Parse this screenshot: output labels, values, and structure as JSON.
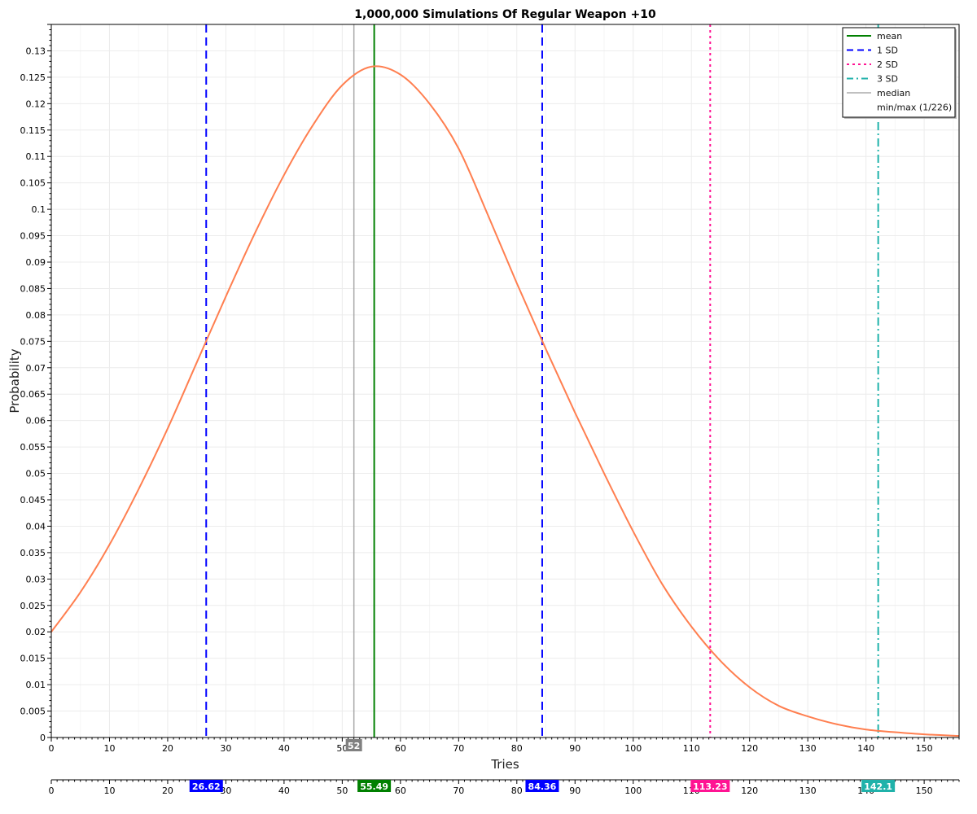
{
  "chart_data": {
    "type": "line",
    "title": "1,000,000 Simulations Of Regular Weapon +10",
    "xlabel": "Tries",
    "ylabel": "Probability",
    "xlim": [
      0,
      156
    ],
    "ylim": [
      0,
      0.135
    ],
    "x_ticks": [
      0,
      10,
      20,
      30,
      40,
      50,
      60,
      70,
      80,
      90,
      100,
      110,
      120,
      130,
      140,
      150
    ],
    "y_ticks": [
      0,
      0.005,
      0.01,
      0.015,
      0.02,
      0.025,
      0.03,
      0.035,
      0.04,
      0.045,
      0.05,
      0.055,
      0.06,
      0.065,
      0.07,
      0.075,
      0.08,
      0.085,
      0.09,
      0.095,
      0.1,
      0.105,
      0.11,
      0.115,
      0.12,
      0.125,
      0.13
    ],
    "grid": true,
    "series": [
      {
        "color": "#ff7f50",
        "x": [
          0,
          5,
          10,
          15,
          20,
          25,
          30,
          35,
          40,
          45,
          50,
          55,
          60,
          65,
          70,
          75,
          80,
          85,
          90,
          95,
          100,
          105,
          110,
          115,
          120,
          125,
          130,
          135,
          140,
          145,
          150,
          156
        ],
        "y": [
          0.02,
          0.0275,
          0.0365,
          0.047,
          0.0585,
          0.071,
          0.0835,
          0.0955,
          0.1065,
          0.116,
          0.1235,
          0.127,
          0.1255,
          0.12,
          0.1115,
          0.099,
          0.086,
          0.0735,
          0.0615,
          0.05,
          0.039,
          0.029,
          0.021,
          0.0145,
          0.0095,
          0.006,
          0.004,
          0.0025,
          0.0015,
          0.001,
          0.0006,
          0.0003
        ]
      }
    ],
    "vlines": [
      {
        "key": "mean",
        "x": 55.49,
        "color": "#008000",
        "dash": "",
        "width": 2,
        "badge": "55.49",
        "badge_color": "#008000"
      },
      {
        "key": "sd1-low",
        "x": 26.62,
        "color": "#0000ff",
        "dash": "10,6",
        "width": 2,
        "badge": "26.62",
        "badge_color": "#0000ff"
      },
      {
        "key": "sd1-high",
        "x": 84.36,
        "color": "#0000ff",
        "dash": "10,6",
        "width": 2,
        "badge": "84.36",
        "badge_color": "#0000ff"
      },
      {
        "key": "sd2",
        "x": 113.23,
        "color": "#ff1493",
        "dash": "3,4",
        "width": 2,
        "badge": "113.23",
        "badge_color": "#ff1493"
      },
      {
        "key": "sd3",
        "x": 142.1,
        "color": "#20b2aa",
        "dash": "10,4,2,4",
        "width": 2,
        "badge": "142.1",
        "badge_color": "#20b2aa"
      },
      {
        "key": "median",
        "x": 52,
        "color": "#a9a9a9",
        "dash": "",
        "width": 1.5,
        "badge": "52",
        "badge_color": "#808080"
      }
    ],
    "legend": {
      "position": "top-right",
      "items": [
        {
          "label": "mean",
          "color": "#008000",
          "dash": "",
          "width": 2
        },
        {
          "label": "1 SD",
          "color": "#0000ff",
          "dash": "8,5",
          "width": 2
        },
        {
          "label": "2 SD",
          "color": "#ff1493",
          "dash": "3,4",
          "width": 2
        },
        {
          "label": "3 SD",
          "color": "#20b2aa",
          "dash": "8,4,2,4",
          "width": 2
        },
        {
          "label": "median",
          "color": "#808080",
          "dash": "",
          "width": 1
        },
        {
          "label": "min/max (1/226)",
          "color": "none",
          "dash": "",
          "width": 0
        }
      ]
    }
  }
}
